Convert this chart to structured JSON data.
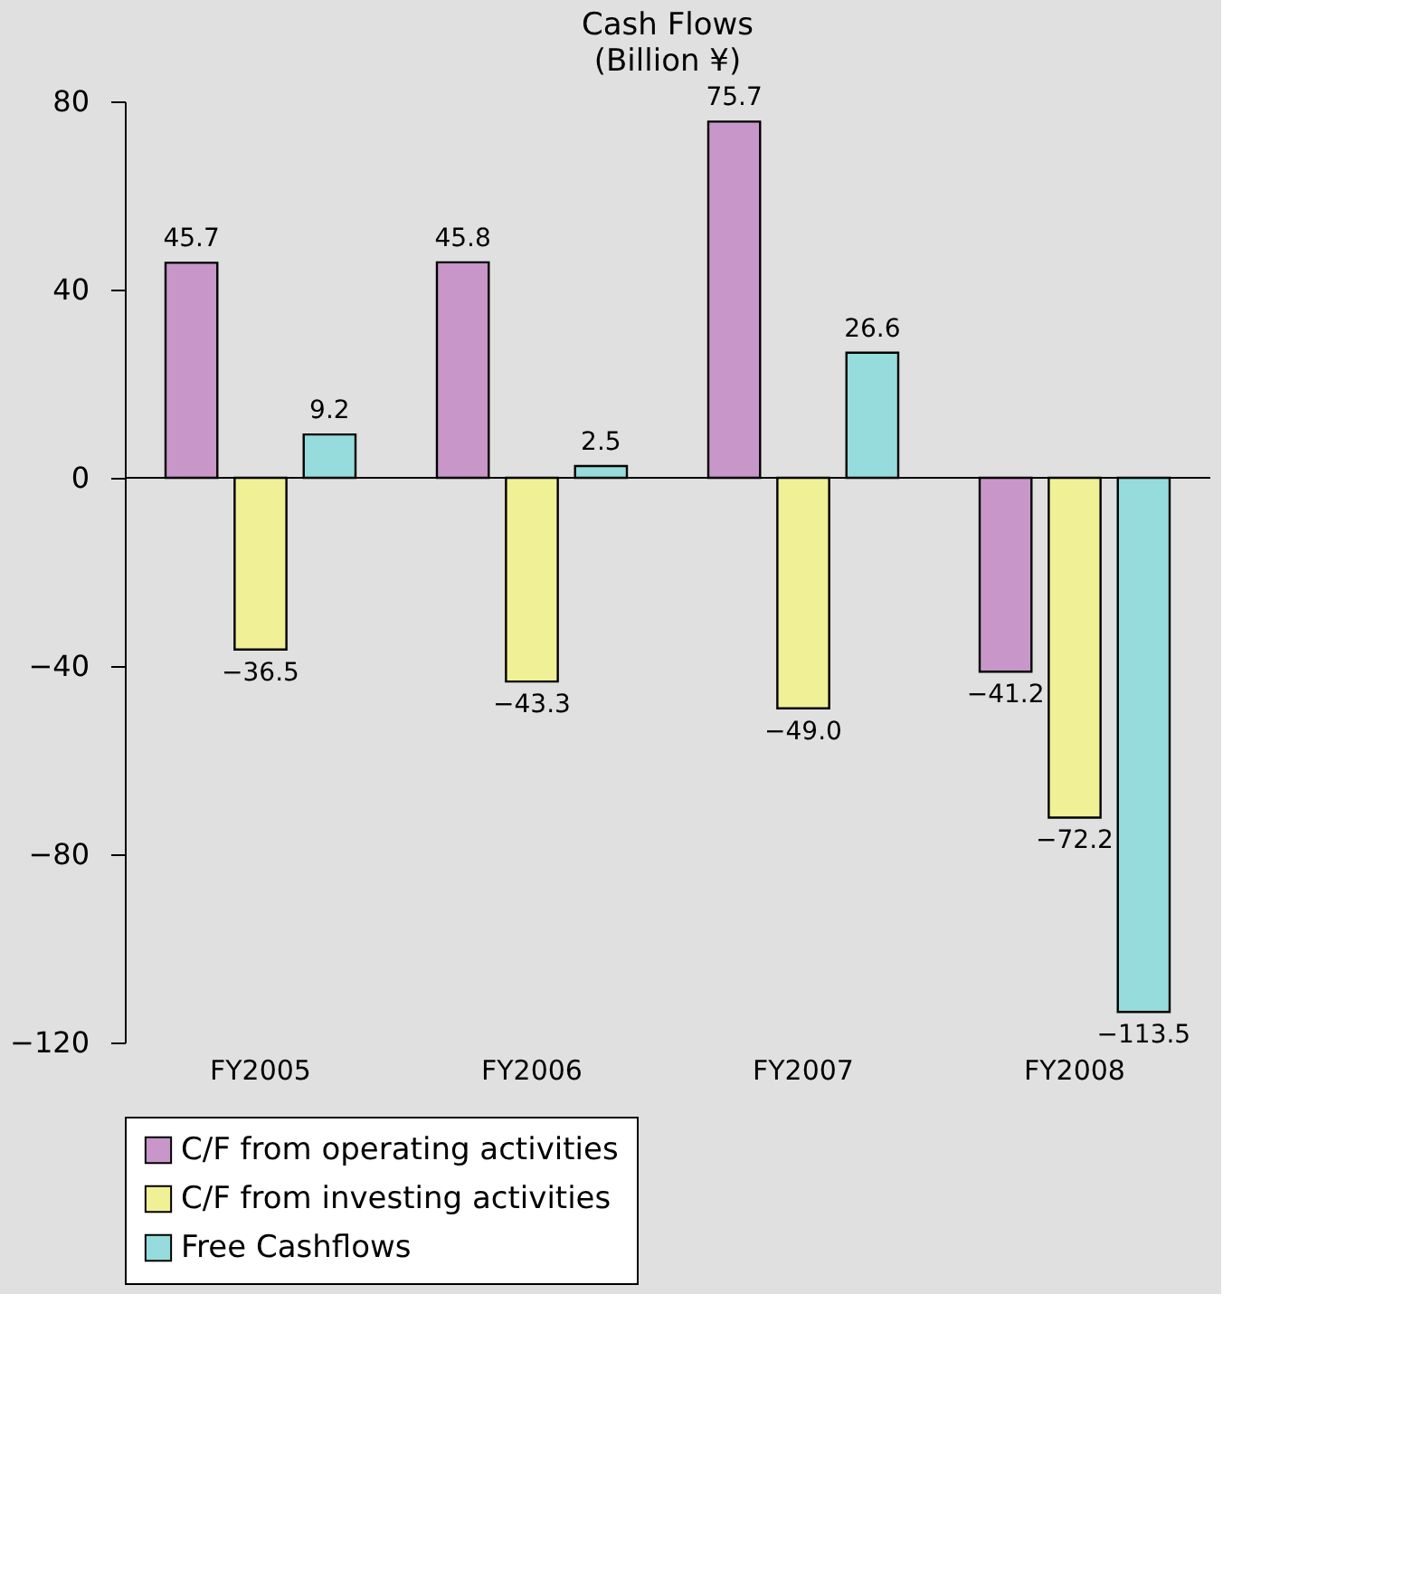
{
  "chart_data": {
    "type": "bar",
    "title": "Cash Flows",
    "ylabel": "(Billion ¥)",
    "categories": [
      "FY2005",
      "FY2006",
      "FY2007",
      "FY2008"
    ],
    "series": [
      {
        "name": "C/F from operating activities",
        "color": "#c896c8",
        "values": [
          45.7,
          45.8,
          75.7,
          -41.2
        ],
        "value_labels": [
          "45.7",
          "45.8",
          "75.7",
          "−41.2"
        ]
      },
      {
        "name": "C/F from investing activities",
        "color": "#f0f096",
        "values": [
          -36.5,
          -43.3,
          -49.0,
          -72.2
        ],
        "value_labels": [
          "−36.5",
          "−43.3",
          "−49.0",
          "−72.2"
        ]
      },
      {
        "name": "Free Cashflows",
        "color": "#96dcdc",
        "values": [
          9.2,
          2.5,
          26.6,
          -113.5
        ],
        "value_labels": [
          "9.2",
          "2.5",
          "26.6",
          "−113.5"
        ]
      }
    ],
    "ylim": [
      -120,
      80
    ],
    "yticks": [
      -120,
      -80,
      -40,
      0,
      40,
      80
    ],
    "legend": "bottom"
  }
}
